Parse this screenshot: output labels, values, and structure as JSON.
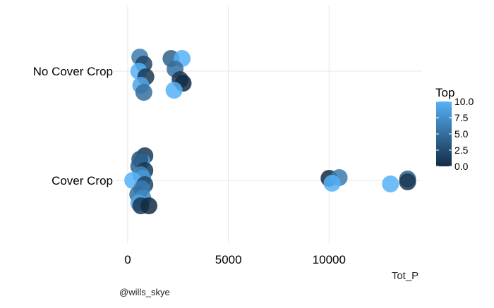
{
  "chart_data": {
    "type": "scatter",
    "xlabel": "Tot_P",
    "ylabel": "",
    "xlim": [
      0,
      14500
    ],
    "x_ticks": [
      0,
      5000,
      10000
    ],
    "x_tick_labels": [
      "0",
      "5000",
      "10000"
    ],
    "categories": [
      "No Cover Crop",
      "Cover Crop"
    ],
    "grid": true,
    "legend": {
      "title": "Top",
      "position": "right",
      "range": [
        0,
        10
      ],
      "ticks": [
        0,
        2.5,
        5,
        7.5,
        10
      ],
      "tick_labels": [
        "0.0",
        "2.5",
        "5.0",
        "7.5",
        "10.0"
      ],
      "color_low": "#132B43",
      "color_high": "#56B1F7"
    },
    "caption": "@wills_skye",
    "series": [
      {
        "category": "No Cover Crop",
        "points": [
          {
            "x": 600,
            "jitter": 0.2,
            "top": 6
          },
          {
            "x": 800,
            "jitter": 0.1,
            "top": 2
          },
          {
            "x": 550,
            "jitter": 0.0,
            "top": 10
          },
          {
            "x": 900,
            "jitter": -0.08,
            "top": 1
          },
          {
            "x": 650,
            "jitter": -0.2,
            "top": 9
          },
          {
            "x": 800,
            "jitter": -0.3,
            "top": 5
          },
          {
            "x": 2150,
            "jitter": 0.18,
            "top": 4
          },
          {
            "x": 2700,
            "jitter": 0.18,
            "top": 10
          },
          {
            "x": 2350,
            "jitter": 0.03,
            "top": 5
          },
          {
            "x": 2600,
            "jitter": -0.12,
            "top": 1
          },
          {
            "x": 2750,
            "jitter": -0.17,
            "top": 0
          },
          {
            "x": 2300,
            "jitter": -0.27,
            "top": 10
          }
        ]
      },
      {
        "category": "Cover Crop",
        "points": [
          {
            "x": 850,
            "jitter": 0.35,
            "top": 1
          },
          {
            "x": 700,
            "jitter": 0.27,
            "top": 9
          },
          {
            "x": 600,
            "jitter": 0.3,
            "top": 3
          },
          {
            "x": 550,
            "jitter": 0.2,
            "top": 4
          },
          {
            "x": 850,
            "jitter": 0.14,
            "top": 1
          },
          {
            "x": 650,
            "jitter": 0.08,
            "top": 7
          },
          {
            "x": 750,
            "jitter": 0.03,
            "top": 8
          },
          {
            "x": 250,
            "jitter": 0.0,
            "top": 10
          },
          {
            "x": 850,
            "jitter": -0.06,
            "top": 2
          },
          {
            "x": 700,
            "jitter": -0.12,
            "top": 6
          },
          {
            "x": 500,
            "jitter": -0.2,
            "top": 5
          },
          {
            "x": 750,
            "jitter": -0.25,
            "top": 7
          },
          {
            "x": 550,
            "jitter": -0.32,
            "top": 9
          },
          {
            "x": 650,
            "jitter": -0.36,
            "top": 1
          },
          {
            "x": 1050,
            "jitter": -0.36,
            "top": 0
          },
          {
            "x": 10000,
            "jitter": 0.03,
            "top": 0
          },
          {
            "x": 10500,
            "jitter": 0.04,
            "top": 6
          },
          {
            "x": 10150,
            "jitter": -0.04,
            "top": 10
          },
          {
            "x": 13050,
            "jitter": -0.05,
            "top": 10
          },
          {
            "x": 13900,
            "jitter": 0.02,
            "top": 4
          },
          {
            "x": 13900,
            "jitter": -0.02,
            "top": 1
          }
        ]
      }
    ]
  }
}
